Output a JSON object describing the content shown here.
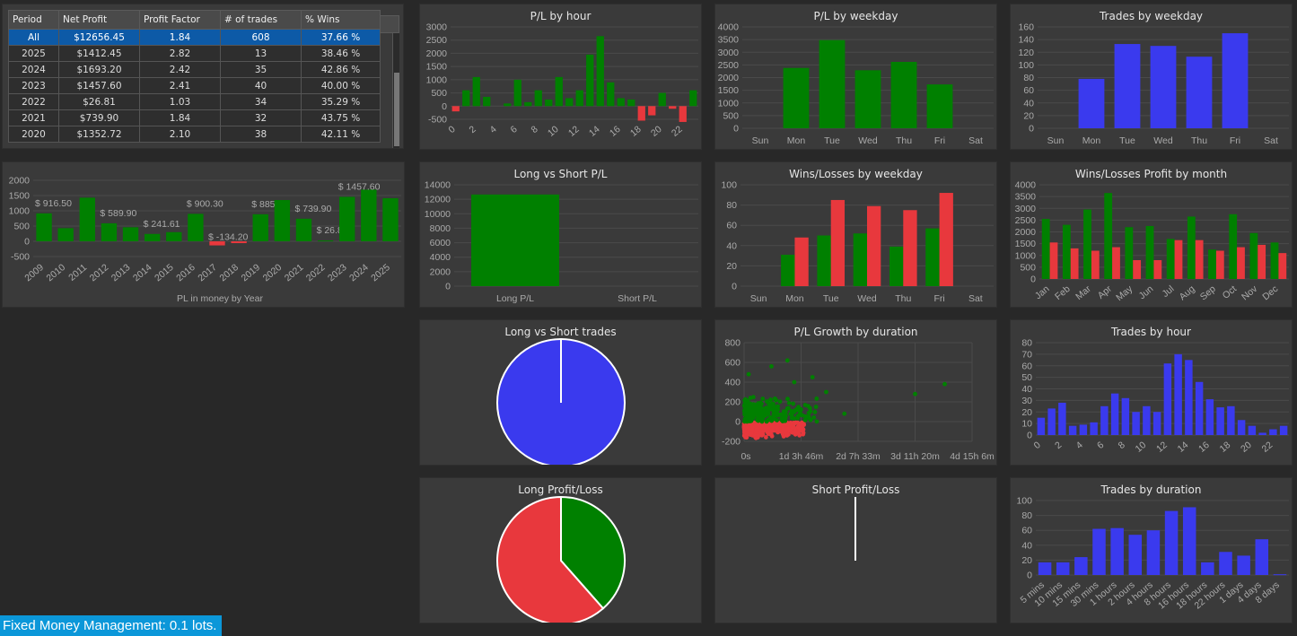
{
  "colors": {
    "green": "#008000",
    "red": "#e8383d",
    "blue": "#3a3aee",
    "panel": "#3a3a3a",
    "grid": "#4a4a4a",
    "axis_text": "#aaaaaa",
    "selection": "#0d5aa7",
    "footer": "#0b97d9"
  },
  "stats_table": {
    "headers": [
      "Period",
      "Net Profit",
      "Profit Factor",
      "# of trades",
      "% Wins"
    ],
    "rows": [
      [
        "All",
        "$12656.45",
        "1.84",
        "608",
        "37.66 %"
      ],
      [
        "2025",
        "$1412.45",
        "2.82",
        "13",
        "38.46 %"
      ],
      [
        "2024",
        "$1693.20",
        "2.42",
        "35",
        "42.86 %"
      ],
      [
        "2023",
        "$1457.60",
        "2.41",
        "40",
        "40.00 %"
      ],
      [
        "2022",
        "$26.81",
        "1.03",
        "34",
        "35.29 %"
      ],
      [
        "2021",
        "$739.90",
        "1.84",
        "32",
        "43.75 %"
      ],
      [
        "2020",
        "$1352.72",
        "2.10",
        "38",
        "42.11 %"
      ]
    ],
    "selected_row": 0
  },
  "footer": {
    "text": "Fixed Money Management: 0.1 lots."
  },
  "chart_data": [
    {
      "id": "pl_year",
      "type": "bar",
      "title": "",
      "xlabel": "PL in money by Year",
      "categories": [
        "2009",
        "2010",
        "2011",
        "2012",
        "2013",
        "2014",
        "2015",
        "2016",
        "2017",
        "2018",
        "2019",
        "2020",
        "2021",
        "2022",
        "2023",
        "2024",
        "2025"
      ],
      "values": [
        916.5,
        430,
        1430,
        589.9,
        460,
        241.61,
        300,
        900.3,
        -134.2,
        -60,
        885.9,
        1352.72,
        739.9,
        26.81,
        1457.6,
        1693.2,
        1412.45
      ],
      "data_labels": [
        "$ 916.50",
        "",
        "",
        "$ 589.90",
        "",
        "$ 241.61",
        "",
        "$ 900.30",
        "$ -134.20",
        "",
        "$ 885.90",
        "",
        "$ 739.90",
        "$ 26.81",
        "$ 1457.60",
        "",
        ""
      ],
      "yticks": [
        "2000",
        "1500",
        "1000",
        "500",
        "0",
        "-500"
      ],
      "ylim": [
        -500,
        2000
      ]
    },
    {
      "id": "pl_hour",
      "type": "bar",
      "title": "P/L by hour",
      "categories": [
        "0",
        "1",
        "2",
        "3",
        "4",
        "5",
        "6",
        "7",
        "8",
        "9",
        "10",
        "11",
        "12",
        "13",
        "14",
        "15",
        "16",
        "17",
        "18",
        "19",
        "20",
        "21",
        "22",
        "23"
      ],
      "x_tick_labels": [
        "0",
        "2",
        "4",
        "6",
        "8",
        "10",
        "12",
        "14",
        "16",
        "18",
        "20",
        "22"
      ],
      "values": [
        -200,
        600,
        1100,
        350,
        0,
        100,
        1000,
        150,
        600,
        250,
        1100,
        300,
        600,
        1950,
        2650,
        900,
        300,
        250,
        -550,
        -350,
        500,
        -100,
        -600,
        600
      ],
      "yticks": [
        "3000",
        "2500",
        "2000",
        "1500",
        "1000",
        "500",
        "0",
        "-500"
      ],
      "ylim": [
        -500,
        3000
      ]
    },
    {
      "id": "pl_weekday",
      "type": "bar",
      "title": "P/L by weekday",
      "categories": [
        "Sun",
        "Mon",
        "Tue",
        "Wed",
        "Thu",
        "Fri",
        "Sat"
      ],
      "values": [
        0,
        2380,
        3480,
        2290,
        2620,
        1730,
        0
      ],
      "yticks": [
        "4000",
        "3500",
        "3000",
        "2500",
        "2000",
        "1500",
        "1000",
        "500",
        "0"
      ],
      "ylim": [
        0,
        4000
      ]
    },
    {
      "id": "trades_weekday",
      "type": "bar",
      "title": "Trades by weekday",
      "categories": [
        "Sun",
        "Mon",
        "Tue",
        "Wed",
        "Thu",
        "Fri",
        "Sat"
      ],
      "values": [
        0,
        78,
        133,
        130,
        113,
        150,
        0
      ],
      "yticks": [
        "160",
        "140",
        "120",
        "100",
        "80",
        "60",
        "40",
        "20",
        "0"
      ],
      "ylim": [
        0,
        160
      ]
    },
    {
      "id": "long_short_pl",
      "type": "bar",
      "title": "Long vs Short P/L",
      "categories": [
        "Long P/L",
        "Short P/L"
      ],
      "values": [
        12656.45,
        0
      ],
      "yticks": [
        "14000",
        "12000",
        "10000",
        "8000",
        "6000",
        "4000",
        "2000",
        "0"
      ],
      "ylim": [
        0,
        14000
      ]
    },
    {
      "id": "wl_weekday",
      "type": "bar",
      "title": "Wins/Losses by weekday",
      "categories": [
        "Sun",
        "Mon",
        "Tue",
        "Wed",
        "Thu",
        "Fri",
        "Sat"
      ],
      "series": [
        {
          "values": [
            0,
            31,
            50,
            52,
            39,
            57,
            0
          ]
        },
        {
          "values": [
            0,
            48,
            85,
            79,
            75,
            92,
            0
          ]
        }
      ],
      "yticks": [
        "100",
        "80",
        "60",
        "40",
        "20",
        "0"
      ],
      "ylim": [
        0,
        100
      ]
    },
    {
      "id": "wl_month",
      "type": "bar",
      "title": "Wins/Losses Profit by month",
      "categories": [
        "Jan",
        "Feb",
        "Mar",
        "Apr",
        "May",
        "Jun",
        "Jul",
        "Aug",
        "Sep",
        "Oct",
        "Nov",
        "Dec"
      ],
      "series": [
        {
          "values": [
            2550,
            2300,
            2950,
            3650,
            2200,
            2250,
            1700,
            2650,
            1250,
            2750,
            1950,
            1550
          ]
        },
        {
          "values": [
            1550,
            1300,
            1200,
            1350,
            800,
            800,
            1650,
            1650,
            1200,
            1350,
            1450,
            1100
          ]
        }
      ],
      "yticks": [
        "4000",
        "3500",
        "3000",
        "2500",
        "2000",
        "1500",
        "1000",
        "500",
        "0"
      ],
      "ylim": [
        0,
        4000
      ]
    },
    {
      "id": "long_short_trades",
      "type": "pie",
      "title": "Long vs Short trades",
      "values": [
        608,
        0
      ]
    },
    {
      "id": "pl_duration",
      "type": "scatter",
      "title": "P/L Growth by duration",
      "x_tick_labels": [
        "0s",
        "1d 3h 46m",
        "2d 7h 33m",
        "3d 11h 20m",
        "4d 15h 6m"
      ],
      "yticks": [
        "800",
        "600",
        "400",
        "200",
        "0",
        "-200"
      ],
      "ylim": [
        -200,
        800
      ]
    },
    {
      "id": "trades_hour",
      "type": "bar",
      "title": "Trades by hour",
      "categories": [
        "0",
        "1",
        "2",
        "3",
        "4",
        "5",
        "6",
        "7",
        "8",
        "9",
        "10",
        "11",
        "12",
        "13",
        "14",
        "15",
        "16",
        "17",
        "18",
        "19",
        "20",
        "21",
        "22",
        "23"
      ],
      "x_tick_labels": [
        "0",
        "2",
        "4",
        "6",
        "8",
        "10",
        "12",
        "14",
        "16",
        "18",
        "20",
        "22"
      ],
      "values": [
        15,
        23,
        28,
        8,
        9,
        11,
        25,
        36,
        32,
        20,
        25,
        20,
        62,
        70,
        65,
        46,
        31,
        24,
        25,
        13,
        8,
        2,
        5,
        8
      ],
      "yticks": [
        "80",
        "70",
        "60",
        "50",
        "40",
        "30",
        "20",
        "10",
        "0"
      ],
      "ylim": [
        0,
        80
      ]
    },
    {
      "id": "long_pl",
      "type": "pie",
      "title": "Long Profit/Loss",
      "values": [
        38.5,
        61.5
      ]
    },
    {
      "id": "short_pl",
      "type": "pie",
      "title": "Short Profit/Loss",
      "values": [
        0,
        0
      ]
    },
    {
      "id": "trades_duration",
      "type": "bar",
      "title": "Trades by duration",
      "categories": [
        "5 mins",
        "10 mins",
        "15 mins",
        "30 mins",
        "1 hours",
        "2 hours",
        "4 hours",
        "8 hours",
        "16 hours",
        "18 hours",
        "22 hours",
        "1 days",
        "4 days",
        "8 days"
      ],
      "values": [
        17,
        17,
        24,
        62,
        63,
        54,
        60,
        86,
        91,
        17,
        31,
        26,
        48,
        1
      ],
      "yticks": [
        "100",
        "80",
        "60",
        "40",
        "20",
        "0"
      ],
      "ylim": [
        0,
        100
      ]
    }
  ]
}
